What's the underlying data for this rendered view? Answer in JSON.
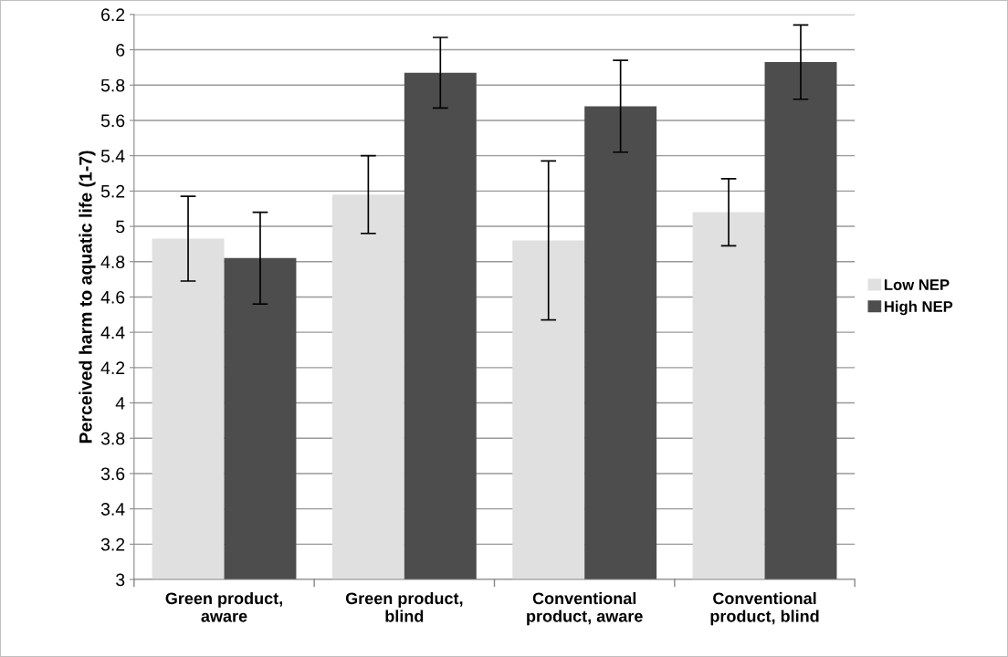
{
  "chart_data": {
    "type": "bar",
    "ylabel": "Perceived harm to aquatic life (1-7)",
    "categories": [
      "Green product,\naware",
      "Green product,\nblind",
      "Conventional\nproduct, aware",
      "Conventional\nproduct, blind"
    ],
    "series": [
      {
        "name": "Low NEP",
        "color": "#e0e0e0",
        "values": [
          4.93,
          5.18,
          4.92,
          5.08
        ],
        "errors": [
          0.24,
          0.22,
          0.45,
          0.19
        ]
      },
      {
        "name": "High NEP",
        "color": "#4d4d4d",
        "values": [
          4.82,
          5.87,
          5.68,
          5.93
        ],
        "errors": [
          0.26,
          0.2,
          0.26,
          0.21
        ]
      }
    ],
    "ylim": [
      3,
      6.2
    ],
    "yticks": [
      3,
      3.2,
      3.4,
      3.6,
      3.8,
      4,
      4.2,
      4.4,
      4.6,
      4.8,
      5,
      5.2,
      5.4,
      5.6,
      5.8,
      6,
      6.2
    ],
    "grid": "y",
    "legend": "right"
  }
}
